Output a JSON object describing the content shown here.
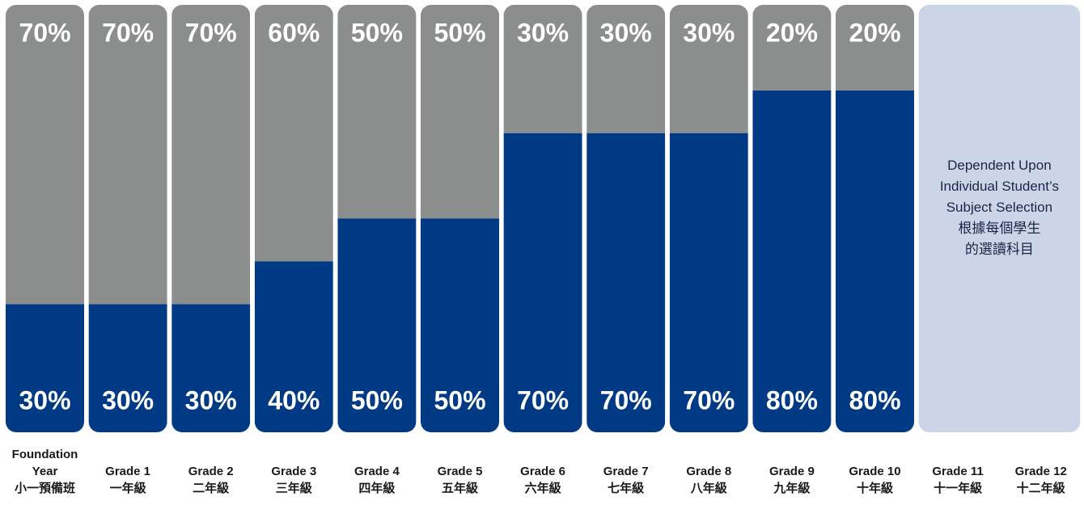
{
  "chart_data": {
    "type": "stacked_bar",
    "categories": [
      "Foundation\nYear\n小一預備班",
      "Grade 1\n一年級",
      "Grade 2\n二年級",
      "Grade 3\n三年級",
      "Grade 4\n四年級",
      "Grade 5\n五年級",
      "Grade 6\n六年級",
      "Grade 7\n七年級",
      "Grade 8\n八年級",
      "Grade 9\n九年級",
      "Grade 10\n十年級",
      "Grade 11\n十一年級",
      "Grade 12\n十二年級"
    ],
    "series": [
      {
        "color": "#003a85",
        "values": [
          30,
          30,
          30,
          40,
          50,
          50,
          70,
          70,
          70,
          80,
          80,
          null,
          null
        ],
        "value_labels": [
          "30%",
          "30%",
          "30%",
          "40%",
          "50%",
          "50%",
          "70%",
          "70%",
          "70%",
          "80%",
          "80%",
          null,
          null
        ]
      },
      {
        "color": "#8c8d8d",
        "values": [
          70,
          70,
          70,
          60,
          50,
          50,
          30,
          30,
          30,
          20,
          20,
          null,
          null
        ],
        "value_labels": [
          "70%",
          "70%",
          "70%",
          "60%",
          "50%",
          "50%",
          "30%",
          "30%",
          "30%",
          "20%",
          "20%",
          null,
          null
        ]
      }
    ],
    "ylim": [
      0,
      100
    ],
    "annotation": "Dependent Upon\nIndividual Student’s\nSubject Selection\n根據每個學生\n的選讀科目"
  }
}
